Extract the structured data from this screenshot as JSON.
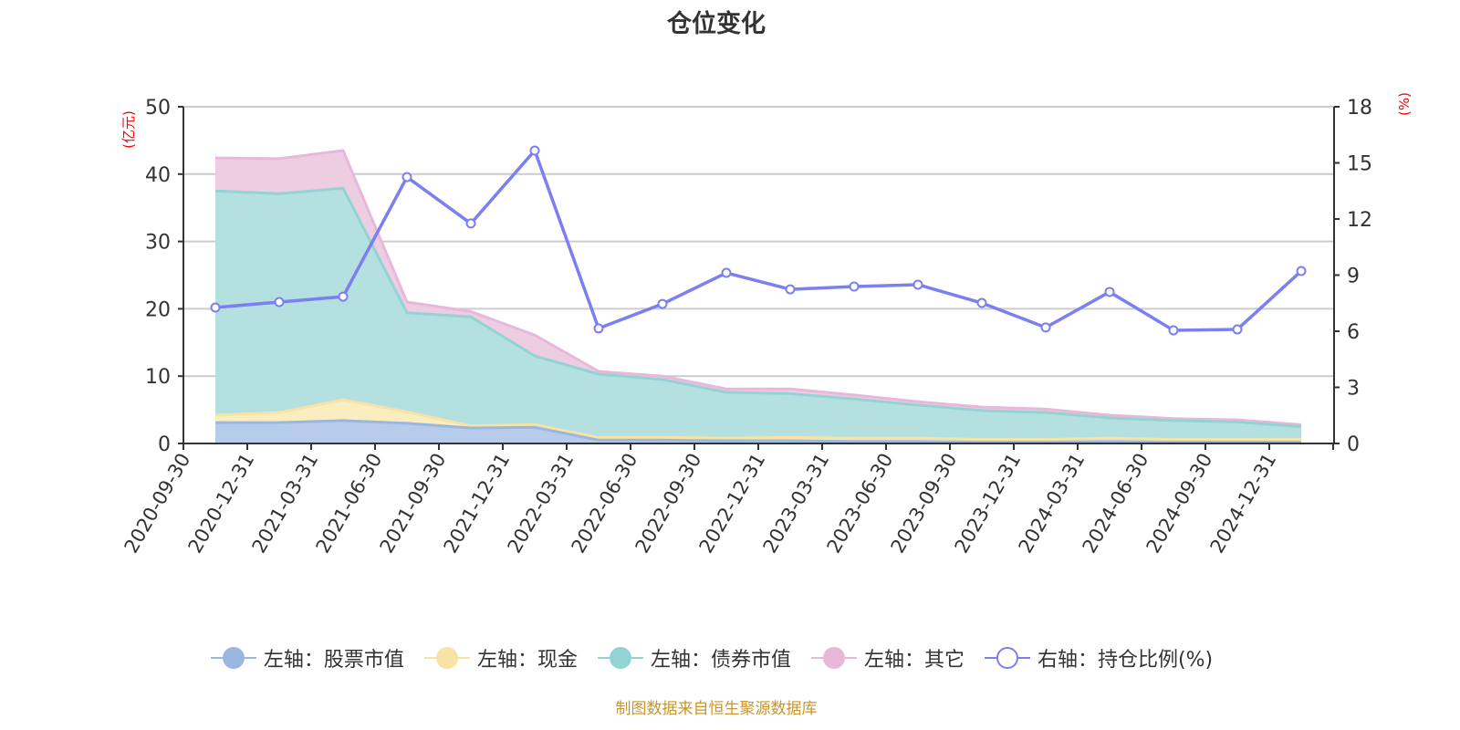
{
  "title": "仓位变化",
  "footer": "制图数据来自恒生聚源数据库",
  "axes": {
    "left_unit": "(亿元)",
    "right_unit": "(%)",
    "left_ticks": [
      "0",
      "10",
      "20",
      "30",
      "40",
      "50"
    ],
    "right_ticks": [
      "0",
      "3",
      "6",
      "9",
      "12",
      "15",
      "18"
    ]
  },
  "legend": [
    {
      "label": "左轴：股票市值",
      "color": "#9bb7e0",
      "style": "filled"
    },
    {
      "label": "左轴：现金",
      "color": "#f7e4a4",
      "style": "filled"
    },
    {
      "label": "左轴：债券市值",
      "color": "#93d3d3",
      "style": "filled"
    },
    {
      "label": "左轴：其它",
      "color": "#e8b8da",
      "style": "filled"
    },
    {
      "label": "右轴：持仓比例(%)",
      "color": "#7b7ff0",
      "style": "hollow"
    }
  ],
  "colors": {
    "stock_fill": "#b7cbea",
    "stock_line": "#9bb7e0",
    "cash_fill": "#faedc0",
    "cash_line": "#f7e4a4",
    "bond_fill": "#b5e0e0",
    "bond_line": "#93d3d3",
    "other_fill": "#edcde2",
    "other_line": "#e8b8da",
    "ratio_line": "#7b7ff0",
    "grid": "#cccccc",
    "axis": "#333333",
    "unit_label": "#ff0000",
    "footer": "#c8962a"
  },
  "chart_data": {
    "type": "area+line",
    "title": "仓位变化",
    "categories": [
      "2020-09-30",
      "2020-12-31",
      "2021-03-31",
      "2021-06-30",
      "2021-09-30",
      "2021-12-31",
      "2022-03-31",
      "2022-06-30",
      "2022-09-30",
      "2022-12-31",
      "2023-03-31",
      "2023-06-30",
      "2023-09-30",
      "2023-12-31",
      "2024-03-31",
      "2024-06-30",
      "2024-09-30",
      "2024-12-31"
    ],
    "ylabel_left": "(亿元)",
    "ylabel_right": "(%)",
    "ylim_left": [
      0,
      50
    ],
    "ylim_right": [
      0,
      18
    ],
    "grid": true,
    "legend_position": "bottom",
    "stacked_series": [
      {
        "name": "左轴：股票市值",
        "axis": "left",
        "values": [
          3.1,
          3.1,
          3.4,
          3.0,
          2.3,
          2.4,
          0.5,
          0.5,
          0.4,
          0.4,
          0.3,
          0.3,
          0.2,
          0.2,
          0.3,
          0.2,
          0.2,
          0.2
        ]
      },
      {
        "name": "左轴：现金",
        "axis": "left",
        "values": [
          1.1,
          1.5,
          3.1,
          1.7,
          0.3,
          0.4,
          0.4,
          0.4,
          0.4,
          0.5,
          0.5,
          0.5,
          0.4,
          0.4,
          0.5,
          0.4,
          0.4,
          0.4
        ]
      },
      {
        "name": "左轴：债券市值",
        "axis": "left",
        "values": [
          33.3,
          32.5,
          31.4,
          14.7,
          16.2,
          10.2,
          9.4,
          8.6,
          6.8,
          6.5,
          5.8,
          4.9,
          4.3,
          4.0,
          3.0,
          2.8,
          2.6,
          1.9
        ]
      },
      {
        "name": "左轴：其它",
        "axis": "left",
        "values": [
          4.9,
          5.2,
          5.6,
          1.6,
          0.8,
          3.1,
          0.4,
          0.5,
          0.5,
          0.7,
          0.6,
          0.5,
          0.5,
          0.5,
          0.4,
          0.3,
          0.3,
          0.3
        ]
      }
    ],
    "line_series": {
      "name": "右轴：持仓比例(%)",
      "axis": "right",
      "values": [
        7.27,
        7.56,
        7.85,
        14.24,
        11.76,
        15.66,
        6.15,
        7.46,
        9.12,
        8.24,
        8.39,
        8.49,
        7.51,
        6.2,
        8.1,
        6.05,
        6.1,
        9.22
      ]
    }
  }
}
